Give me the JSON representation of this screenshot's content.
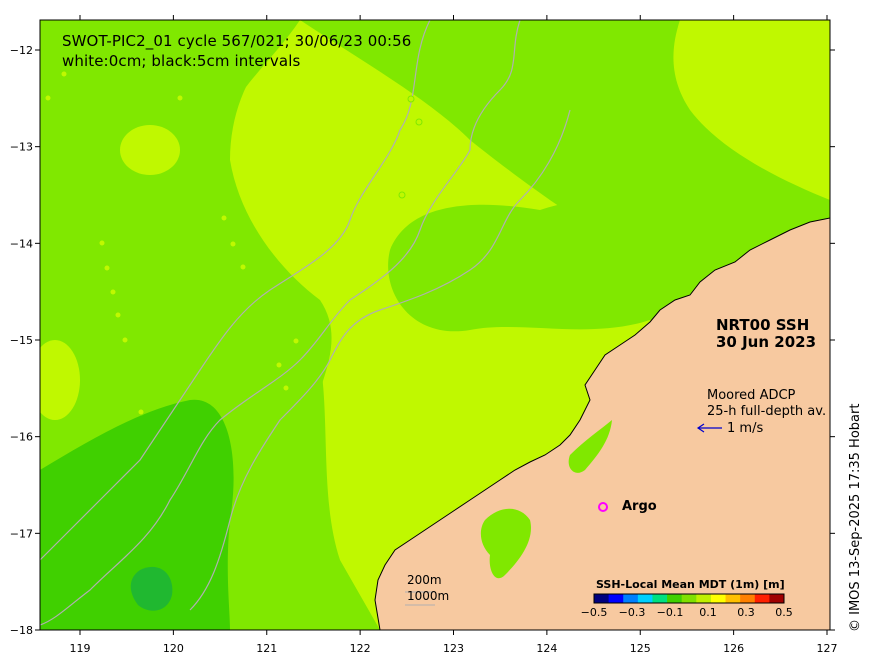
{
  "title": {
    "line1": "SWOT-PIC2_01 cycle 567/021; 30/06/23 00:56",
    "line2": "white:0cm; black:5cm intervals"
  },
  "product": {
    "line1": "NRT00 SSH",
    "line2": "30 Jun 2023"
  },
  "adcp": {
    "line1": "Moored ADCP",
    "line2": "25-h full-depth av.",
    "scale_label": "1 m/s",
    "arrow_color": "#0000cc"
  },
  "argo": {
    "marker": "o",
    "label": "Argo",
    "color": "#ff00ff"
  },
  "depth_legend": {
    "items": [
      "200m",
      "1000m"
    ]
  },
  "colorbar": {
    "title": "SSH-Local Mean MDT (1m) [m]",
    "ticks": [
      "−0.5",
      "−0.3",
      "−0.1",
      "0.1",
      "0.3",
      "0.5"
    ],
    "colors": [
      "#00007f",
      "#0000ff",
      "#0080ff",
      "#00d0ff",
      "#00e080",
      "#40d000",
      "#80e000",
      "#c0f000",
      "#ffff00",
      "#ffc000",
      "#ff8000",
      "#ff2000",
      "#a00000"
    ]
  },
  "credit": "© IMOS 13-Sep-2025 17:35 Hobart",
  "axes": {
    "x_ticks": [
      "119",
      "120",
      "121",
      "122",
      "123",
      "124",
      "125",
      "126",
      "127"
    ],
    "y_ticks": [
      "−12",
      "−13",
      "−14",
      "−15",
      "−16",
      "−17",
      "−18"
    ]
  },
  "colors": {
    "land": "#f7c9a0",
    "ocean_green": "#80e800",
    "ocean_yellowgreen": "#c0f800",
    "ocean_dark": "#40d000",
    "ocean_darker": "#20b830"
  }
}
